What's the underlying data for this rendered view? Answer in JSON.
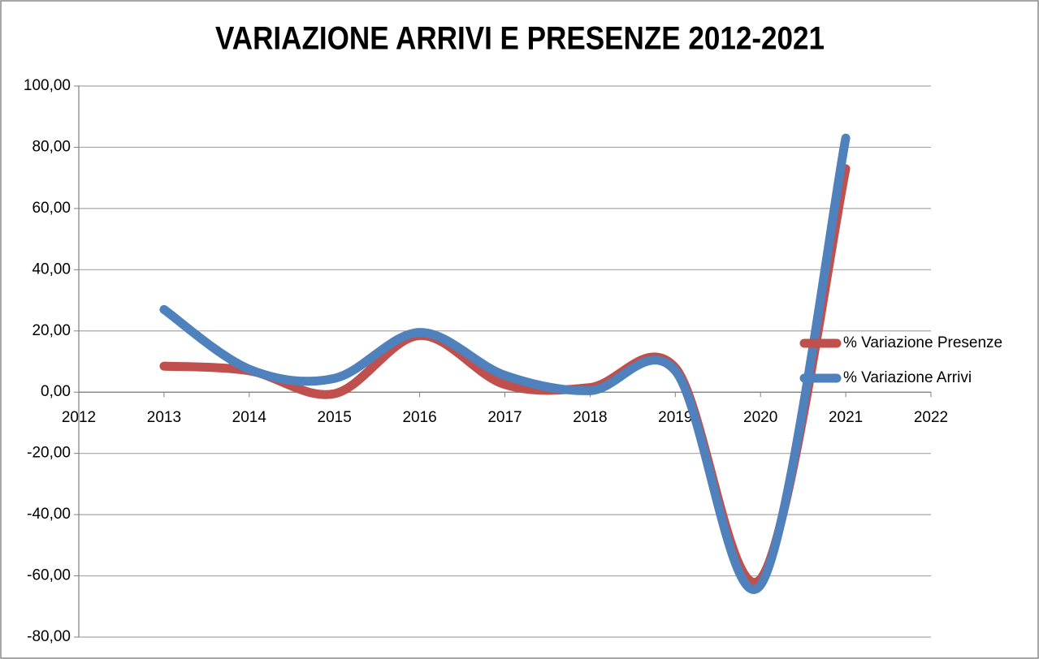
{
  "chart_data": {
    "type": "line",
    "title": "VARIAZIONE ARRIVI E PRESENZE 2012-2021",
    "x": [
      2013,
      2014,
      2015,
      2016,
      2017,
      2018,
      2019,
      2020,
      2021
    ],
    "series": [
      {
        "name": "% Variazione Presenze",
        "color": "#c0504d",
        "values": [
          8.5,
          7,
          -0.5,
          18.5,
          2.5,
          1.5,
          8,
          -61,
          73
        ]
      },
      {
        "name": "% Variazione Arrivi",
        "color": "#4f81bd",
        "values": [
          27,
          7.5,
          4.5,
          19.5,
          5.5,
          0.5,
          7,
          -63,
          83
        ]
      }
    ],
    "xlim": [
      2012,
      2022
    ],
    "xticks": [
      2012,
      2013,
      2014,
      2015,
      2016,
      2017,
      2018,
      2019,
      2020,
      2021,
      2022
    ],
    "ylim": [
      -80,
      100
    ],
    "yticks": [
      {
        "value": -80,
        "label": "-80,00"
      },
      {
        "value": -60,
        "label": "-60,00"
      },
      {
        "value": -40,
        "label": "-40,00"
      },
      {
        "value": -20,
        "label": "-20,00"
      },
      {
        "value": 0,
        "label": "0,00"
      },
      {
        "value": 20,
        "label": "20,00"
      },
      {
        "value": 40,
        "label": "40,00"
      },
      {
        "value": 60,
        "label": "60,00"
      },
      {
        "value": 80,
        "label": "80,00"
      },
      {
        "value": 100,
        "label": "100,00"
      }
    ],
    "grid": true,
    "legend": "right",
    "smooth": true
  }
}
